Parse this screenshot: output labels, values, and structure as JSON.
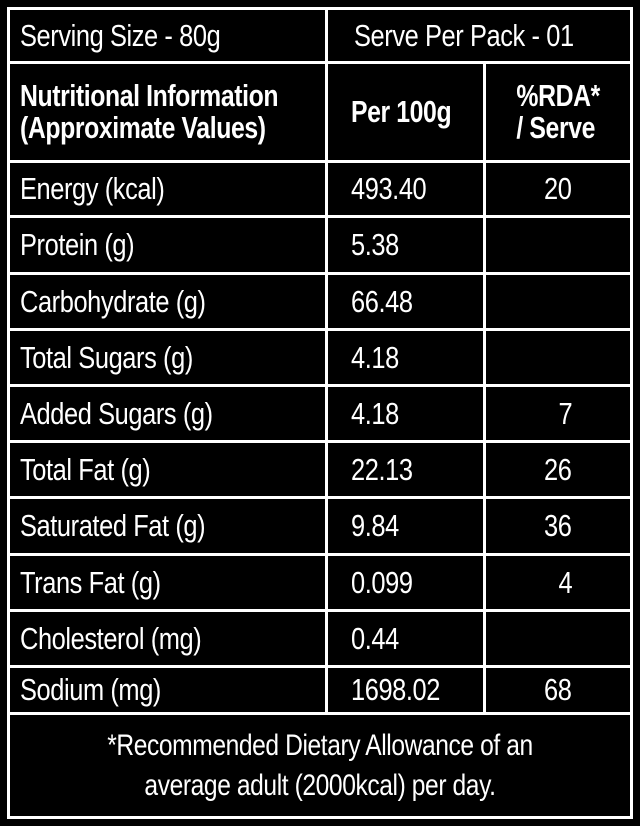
{
  "serving": {
    "size": "Serving Size - 80g",
    "per_pack": "Serve Per Pack - 01"
  },
  "header": {
    "col1_line1": "Nutritional Information",
    "col1_line2": "(Approximate Values)",
    "col2": "Per 100g",
    "col3_line1": "%RDA*",
    "col3_line2": "/ Serve"
  },
  "rows": [
    {
      "nutrient": "Energy (kcal)",
      "per100g": "493.40",
      "rda": "20"
    },
    {
      "nutrient": "Protein (g)",
      "per100g": "5.38",
      "rda": ""
    },
    {
      "nutrient": "Carbohydrate (g)",
      "per100g": "66.48",
      "rda": ""
    },
    {
      "nutrient": "Total Sugars (g)",
      "per100g": "4.18",
      "rda": ""
    },
    {
      "nutrient": "Added Sugars (g)",
      "per100g": "4.18",
      "rda": "7"
    },
    {
      "nutrient": "Total Fat (g)",
      "per100g": "22.13",
      "rda": "26"
    },
    {
      "nutrient": "Saturated Fat (g)",
      "per100g": "9.84",
      "rda": "36"
    },
    {
      "nutrient": "Trans Fat (g)",
      "per100g": "0.099",
      "rda": "4"
    },
    {
      "nutrient": "Cholesterol (mg)",
      "per100g": "0.44",
      "rda": ""
    },
    {
      "nutrient": "Sodium (mg)",
      "per100g": "1698.02",
      "rda": "68"
    }
  ],
  "footnote": "*Recommended Dietary Allowance of an average adult (2000kcal) per day."
}
